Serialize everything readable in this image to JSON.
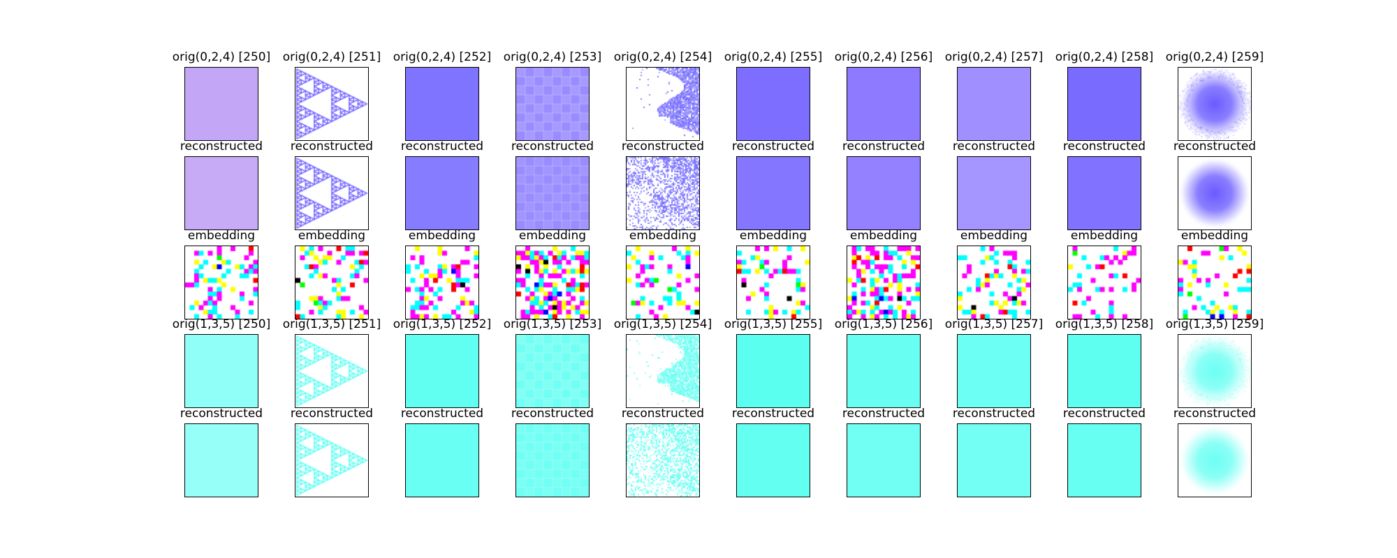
{
  "figure": {
    "rows": [
      {
        "kind": "original",
        "channel_group": "0,2,4",
        "color": "#7b6cff",
        "titles": [
          "orig(0,2,4) [250]",
          "orig(0,2,4) [251]",
          "orig(0,2,4) [252]",
          "orig(0,2,4) [253]",
          "orig(0,2,4) [254]",
          "orig(0,2,4) [255]",
          "orig(0,2,4) [256]",
          "orig(0,2,4) [257]",
          "orig(0,2,4) [258]",
          "orig(0,2,4) [259]"
        ]
      },
      {
        "kind": "reconstructed",
        "channel_group": "0,2,4",
        "color": "#7b6cff",
        "titles": [
          "reconstructed",
          "reconstructed",
          "reconstructed",
          "reconstructed",
          "reconstructed",
          "reconstructed",
          "reconstructed",
          "reconstructed",
          "reconstructed",
          "reconstructed"
        ]
      },
      {
        "kind": "embedding",
        "titles": [
          "embedding",
          "embedding",
          "embedding",
          "embedding",
          "embedding",
          "embedding",
          "embedding",
          "embedding",
          "embedding",
          "embedding"
        ]
      },
      {
        "kind": "original",
        "channel_group": "1,3,5",
        "color": "#4ffff0",
        "titles": [
          "orig(1,3,5) [250]",
          "orig(1,3,5) [251]",
          "orig(1,3,5) [252]",
          "orig(1,3,5) [253]",
          "orig(1,3,5) [254]",
          "orig(1,3,5) [255]",
          "orig(1,3,5) [256]",
          "orig(1,3,5) [257]",
          "orig(1,3,5) [258]",
          "orig(1,3,5) [259]"
        ]
      },
      {
        "kind": "reconstructed",
        "channel_group": "1,3,5",
        "color": "#4ffff0",
        "titles": [
          "reconstructed",
          "reconstructed",
          "reconstructed",
          "reconstructed",
          "reconstructed",
          "reconstructed",
          "reconstructed",
          "reconstructed",
          "reconstructed",
          "reconstructed"
        ]
      }
    ],
    "samples": [
      {
        "index": 250,
        "pattern": "uniform",
        "shade_row1": "#c4a6f6",
        "shade_row4": "#8ffff8"
      },
      {
        "index": 251,
        "pattern": "sierpinski-triangle",
        "shade_row1": "#7b6cff",
        "shade_row4": "#66fff4"
      },
      {
        "index": 252,
        "pattern": "uniform",
        "shade_row1": "#7f74ff",
        "shade_row4": "#60fff2"
      },
      {
        "index": 253,
        "pattern": "checker-texture",
        "shade_row1": "#9a8cff",
        "shade_row4": "#6ffff4"
      },
      {
        "index": 254,
        "pattern": "noisy-map",
        "shade_row1": "#6f66ff",
        "shade_row4": "#5efff2"
      },
      {
        "index": 255,
        "pattern": "uniform",
        "shade_row1": "#7d6eff",
        "shade_row4": "#5afff0"
      },
      {
        "index": 256,
        "pattern": "uniform",
        "shade_row1": "#8d7aff",
        "shade_row4": "#68fff2"
      },
      {
        "index": 257,
        "pattern": "uniform",
        "shade_row1": "#a08fff",
        "shade_row4": "#6cfff4"
      },
      {
        "index": 258,
        "pattern": "uniform",
        "shade_row1": "#7a6bff",
        "shade_row4": "#5efff1"
      },
      {
        "index": 259,
        "pattern": "radial-blob",
        "shade_row1": "#6d5eff",
        "shade_row4": "#6ffff4"
      }
    ],
    "embedding_palette": [
      "#ff00ff",
      "#00ffff",
      "#ffff00",
      "#ff0000",
      "#00ff00",
      "#0000ff",
      "#000000"
    ],
    "embedding_density": [
      0.28,
      0.3,
      0.34,
      0.55,
      0.25,
      0.22,
      0.4,
      0.27,
      0.2,
      0.22
    ]
  }
}
